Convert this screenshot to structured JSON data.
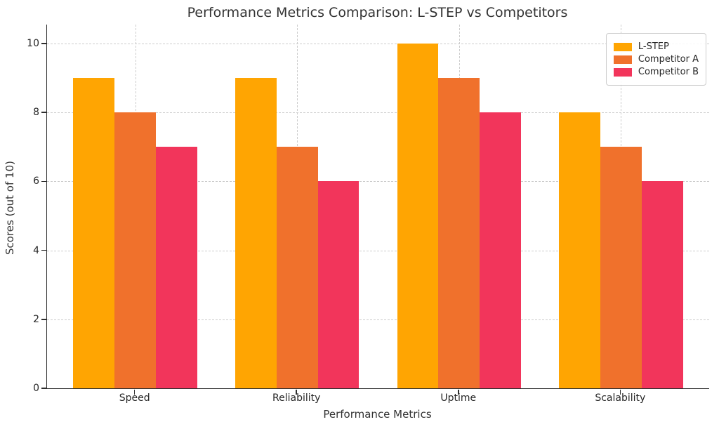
{
  "figure": {
    "background": "#ffffff"
  },
  "chart_data": {
    "type": "bar",
    "title": "Performance Metrics Comparison: L-STEP vs Competitors",
    "xlabel": "Performance Metrics",
    "ylabel": "Scores (out of 10)",
    "categories": [
      "Speed",
      "Reliability",
      "Uptime",
      "Scalability"
    ],
    "series": [
      {
        "name": "L-STEP",
        "color": "#FFA502",
        "values": [
          9,
          9,
          10,
          8
        ]
      },
      {
        "name": "Competitor A",
        "color": "#F0712C",
        "values": [
          8,
          7,
          9,
          7
        ]
      },
      {
        "name": "Competitor B",
        "color": "#F2355B",
        "values": [
          7,
          6,
          8,
          6
        ]
      }
    ],
    "yticks": [
      0,
      2,
      4,
      6,
      8,
      10
    ],
    "ylim": [
      0,
      10.55
    ],
    "grid": true,
    "grid_style": "dashed",
    "grid_color": "#cccccc",
    "legend_position": "upper right"
  },
  "style": {
    "spine_color": "#2e2e2e",
    "tick_text_color": "#262626",
    "title_color": "#333333"
  }
}
